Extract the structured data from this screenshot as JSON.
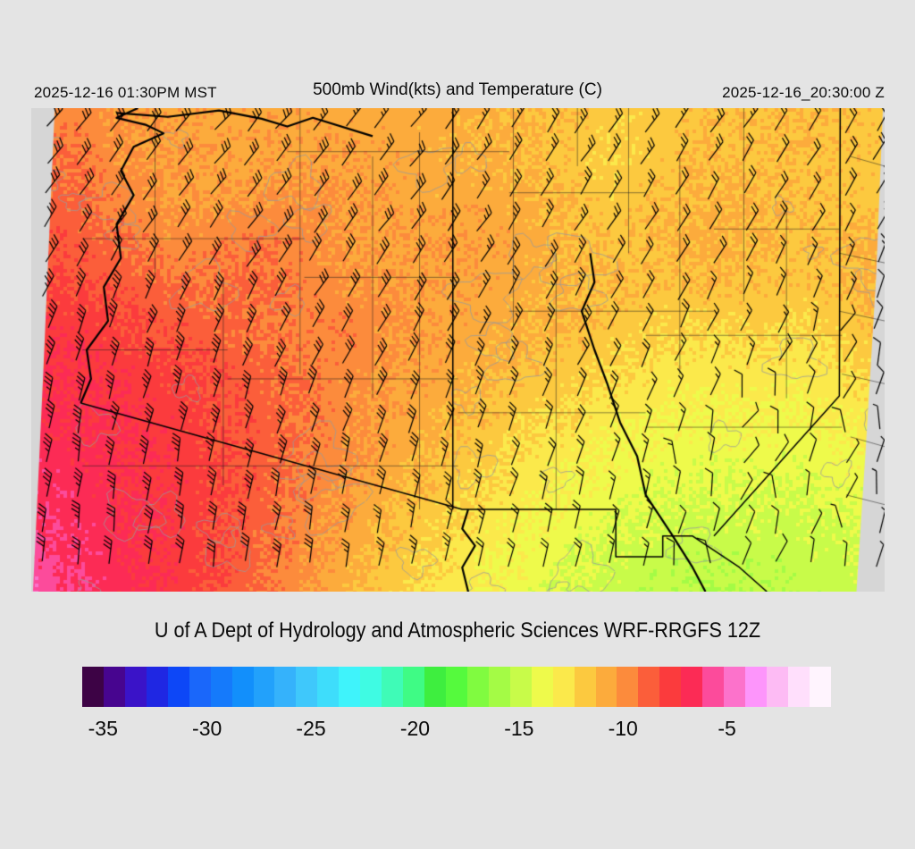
{
  "header": {
    "left_datetime": "2025-12-16 01:30PM MST",
    "title": "500mb Wind(kts) and Temperature (C)",
    "right_datetime": "2025-12-16_20:30:00 Z"
  },
  "credit": "U of A Dept of Hydrology and Atmospheric Sciences WRF-RRGFS 12Z",
  "colorbar": {
    "units": "C",
    "min": -36,
    "max": -1,
    "step": 1,
    "tick_values": [
      -35,
      -30,
      -25,
      -20,
      -15,
      -10,
      -5
    ],
    "tick_labels": [
      "-35",
      "-30",
      "-25",
      "-20",
      "-15",
      "-10",
      "-5"
    ],
    "colors": [
      "#3d0345",
      "#47058f",
      "#3a13c8",
      "#1f27e3",
      "#0d47f7",
      "#1a67fa",
      "#157afb",
      "#128ffb",
      "#22a1fb",
      "#35b2fb",
      "#3fc8fb",
      "#3eddfb",
      "#3ff3fb",
      "#3ffbe3",
      "#3ffbb7",
      "#3ffb85",
      "#3eee3f",
      "#55fa3d",
      "#80fb40",
      "#a4fb45",
      "#c8fb49",
      "#eefa4b",
      "#fbe94b",
      "#fcc93f",
      "#fcab3c",
      "#fc8b3c",
      "#fb5e3a",
      "#fb3b3d",
      "#fc2b55",
      "#fc4b9b",
      "#fc72cb",
      "#fd95fb",
      "#fdbbf4",
      "#ffdffc",
      "#fff4fe"
    ]
  },
  "map": {
    "region": "Arizona and New Mexico",
    "margin_gray": "#d6d6d6",
    "boundary_color": "#000000",
    "contour_color": "#9a9a9a",
    "domain_polygon": [
      [
        0.0275,
        0.0
      ],
      [
        0.998,
        0.0
      ],
      [
        0.99,
        0.35
      ],
      [
        0.978,
        0.7
      ],
      [
        0.967,
        1.0
      ],
      [
        0.002,
        1.0
      ],
      [
        0.014,
        0.55
      ],
      [
        0.0275,
        0.0
      ]
    ],
    "temperature_grid": {
      "cols": 20,
      "rows": 12,
      "units": "C",
      "values": [
        [
          -11.0,
          -10.4,
          -11.0,
          -11.2,
          -11.5,
          -11.3,
          -11.4,
          -11.5,
          -11.6,
          -11.5,
          -11.8,
          -12.0,
          -12.2,
          -12.6,
          -12.6,
          -12.2,
          -12.2,
          -12.0,
          -12.2,
          -12.4
        ],
        [
          -10.2,
          -10.0,
          -10.8,
          -11.0,
          -11.2,
          -11.3,
          -11.3,
          -11.2,
          -11.4,
          -11.6,
          -11.8,
          -12.0,
          -12.5,
          -12.8,
          -12.4,
          -12.0,
          -12.3,
          -12.1,
          -12.3,
          -12.5
        ],
        [
          -9.5,
          -9.8,
          -10.5,
          -11.0,
          -11.2,
          -11.0,
          -10.8,
          -11.0,
          -11.3,
          -11.5,
          -11.5,
          -11.8,
          -12.2,
          -12.6,
          -12.2,
          -11.8,
          -12.0,
          -12.2,
          -12.4,
          -12.6
        ],
        [
          -9.2,
          -9.4,
          -10.0,
          -10.6,
          -10.4,
          -10.0,
          -10.5,
          -11.0,
          -11.2,
          -11.0,
          -11.3,
          -11.5,
          -12.0,
          -12.3,
          -12.0,
          -11.6,
          -11.9,
          -12.2,
          -12.0,
          -11.5
        ],
        [
          -8.8,
          -9.0,
          -9.3,
          -9.8,
          -10.2,
          -9.8,
          -10.3,
          -10.8,
          -11.0,
          -11.2,
          -11.4,
          -11.6,
          -11.9,
          -12.1,
          -12.3,
          -12.0,
          -12.2,
          -12.4,
          -12.2,
          -11.8
        ],
        [
          -8.2,
          -8.4,
          -8.8,
          -9.2,
          -9.6,
          -10.0,
          -10.4,
          -10.2,
          -10.8,
          -11.2,
          -11.5,
          -11.8,
          -12.1,
          -12.5,
          -12.8,
          -13.0,
          -12.8,
          -13.0,
          -12.6,
          -12.2
        ],
        [
          -7.8,
          -8.0,
          -8.3,
          -8.7,
          -9.1,
          -9.6,
          -10.1,
          -10.6,
          -11.0,
          -11.4,
          -11.8,
          -12.2,
          -12.6,
          -13.0,
          -13.4,
          -13.6,
          -13.4,
          -13.6,
          -13.2,
          -12.8
        ],
        [
          -7.6,
          -7.8,
          -8.0,
          -8.4,
          -8.9,
          -9.4,
          -10.0,
          -10.6,
          -11.2,
          -11.7,
          -12.2,
          -12.7,
          -13.2,
          -13.7,
          -14.0,
          -14.2,
          -14.0,
          -14.2,
          -13.8,
          -13.4
        ],
        [
          -7.4,
          -7.6,
          -7.9,
          -8.3,
          -8.8,
          -9.4,
          -10.1,
          -10.8,
          -11.5,
          -12.1,
          -12.7,
          -13.3,
          -13.8,
          -14.2,
          -14.5,
          -14.7,
          -14.6,
          -14.7,
          -14.4,
          -14.0
        ],
        [
          -7.2,
          -7.4,
          -7.8,
          -8.2,
          -8.8,
          -9.5,
          -10.3,
          -11.1,
          -11.9,
          -12.6,
          -13.2,
          -13.8,
          -14.3,
          -14.7,
          -15.0,
          -15.2,
          -15.1,
          -15.2,
          -14.9,
          -14.6
        ],
        [
          -6.8,
          -7.2,
          -7.7,
          -8.2,
          -8.9,
          -9.7,
          -10.6,
          -11.5,
          -12.3,
          -13.0,
          -13.7,
          -14.3,
          -14.8,
          -15.2,
          -15.5,
          -15.6,
          -15.5,
          -15.5,
          -15.3,
          -15.0
        ],
        [
          -6.2,
          -7.0,
          -7.6,
          -8.2,
          -9.0,
          -9.9,
          -10.9,
          -11.8,
          -12.6,
          -13.3,
          -14.0,
          -14.6,
          -15.1,
          -15.5,
          -15.8,
          -16.0,
          -15.8,
          -15.7,
          -15.5,
          -15.2
        ]
      ]
    },
    "wind_grid": {
      "cols": 6,
      "rows": 5,
      "units": "kts (one full barb = 10 kts)",
      "angle_deg": [
        [
          50,
          48,
          52,
          55,
          55,
          58
        ],
        [
          58,
          55,
          52,
          58,
          60,
          62
        ],
        [
          72,
          68,
          60,
          62,
          66,
          70
        ],
        [
          82,
          80,
          76,
          72,
          76,
          82
        ],
        [
          86,
          84,
          80,
          78,
          85,
          95
        ]
      ],
      "barbs": [
        [
          3,
          3,
          2.5,
          2.5,
          2.5,
          2
        ],
        [
          3,
          3,
          3,
          2.5,
          2,
          1.5
        ],
        [
          3.5,
          3.5,
          3,
          2.5,
          1.5,
          1
        ],
        [
          3.5,
          3.5,
          3,
          2,
          1,
          0.5
        ],
        [
          3,
          3,
          2.5,
          2,
          1,
          0.5
        ]
      ]
    },
    "boundaries": {
      "state_lines": [
        [
          [
            0.494,
            0.0
          ],
          [
            0.494,
            0.83
          ]
        ],
        [
          [
            0.948,
            0.0
          ],
          [
            0.947,
            0.595
          ],
          [
            0.8,
            0.885
          ]
        ],
        [
          [
            0.058,
            0.61
          ],
          [
            0.505,
            0.83
          ],
          [
            0.685,
            0.83
          ],
          [
            0.685,
            0.928
          ],
          [
            0.74,
            0.928
          ],
          [
            0.74,
            0.885
          ],
          [
            0.775,
            0.885
          ],
          [
            0.83,
            0.95
          ],
          [
            0.862,
            1.0
          ]
        ]
      ],
      "rivers": [
        [
          [
            0.125,
            0.0
          ],
          [
            0.1,
            0.02
          ],
          [
            0.135,
            0.035
          ],
          [
            0.155,
            0.052
          ],
          [
            0.12,
            0.08
          ],
          [
            0.105,
            0.13
          ],
          [
            0.12,
            0.18
          ],
          [
            0.1,
            0.24
          ],
          [
            0.105,
            0.31
          ],
          [
            0.085,
            0.37
          ],
          [
            0.09,
            0.44
          ],
          [
            0.065,
            0.5
          ],
          [
            0.07,
            0.56
          ],
          [
            0.058,
            0.61
          ]
        ],
        [
          [
            0.1,
            0.01
          ],
          [
            0.16,
            0.018
          ],
          [
            0.22,
            0.005
          ],
          [
            0.27,
            0.022
          ],
          [
            0.3,
            0.038
          ],
          [
            0.33,
            0.02
          ],
          [
            0.4,
            0.058
          ]
        ],
        [
          [
            0.655,
            0.3
          ],
          [
            0.66,
            0.36
          ],
          [
            0.645,
            0.42
          ],
          [
            0.66,
            0.5
          ],
          [
            0.675,
            0.57
          ],
          [
            0.69,
            0.65
          ],
          [
            0.71,
            0.72
          ],
          [
            0.72,
            0.8
          ],
          [
            0.75,
            0.88
          ],
          [
            0.775,
            0.95
          ],
          [
            0.79,
            1.0
          ]
        ],
        [
          [
            0.512,
            0.83
          ],
          [
            0.505,
            0.87
          ],
          [
            0.52,
            0.905
          ],
          [
            0.505,
            0.95
          ],
          [
            0.512,
            1.0
          ]
        ]
      ],
      "county_segments": [
        [
          0.145,
          0.0,
          0.145,
          0.35
        ],
        [
          0.225,
          0.35,
          0.225,
          0.78
        ],
        [
          0.315,
          0.0,
          0.315,
          0.55
        ],
        [
          0.4,
          0.1,
          0.4,
          0.6
        ],
        [
          0.455,
          0.05,
          0.455,
          0.83
        ],
        [
          0.565,
          0.0,
          0.565,
          0.45
        ],
        [
          0.615,
          0.3,
          0.615,
          0.83
        ],
        [
          0.7,
          0.0,
          0.7,
          0.3
        ],
        [
          0.76,
          0.1,
          0.76,
          0.55
        ],
        [
          0.835,
          0.0,
          0.835,
          0.4
        ],
        [
          0.885,
          0.2,
          0.885,
          0.6
        ],
        [
          0.64,
          0.0,
          0.64,
          0.12
        ],
        [
          0.3,
          0.09,
          0.56,
          0.09
        ],
        [
          0.56,
          0.175,
          0.72,
          0.175
        ],
        [
          0.06,
          0.27,
          0.32,
          0.27
        ],
        [
          0.32,
          0.35,
          0.5,
          0.35
        ],
        [
          0.56,
          0.42,
          0.8,
          0.42
        ],
        [
          0.06,
          0.5,
          0.23,
          0.5
        ],
        [
          0.23,
          0.56,
          0.5,
          0.56
        ],
        [
          0.5,
          0.63,
          0.72,
          0.63
        ],
        [
          0.72,
          0.47,
          0.95,
          0.47
        ],
        [
          0.72,
          0.66,
          0.95,
          0.66
        ],
        [
          0.06,
          0.74,
          0.5,
          0.74
        ],
        [
          0.8,
          0.25,
          0.947,
          0.25
        ],
        [
          0.947,
          0.3,
          1.0,
          0.32
        ],
        [
          0.947,
          0.42,
          1.0,
          0.44
        ],
        [
          0.95,
          0.55,
          1.0,
          0.57
        ],
        [
          0.96,
          0.68,
          1.0,
          0.7
        ],
        [
          0.955,
          0.8,
          1.0,
          0.82
        ],
        [
          0.96,
          0.1,
          1.0,
          0.12
        ]
      ]
    }
  }
}
